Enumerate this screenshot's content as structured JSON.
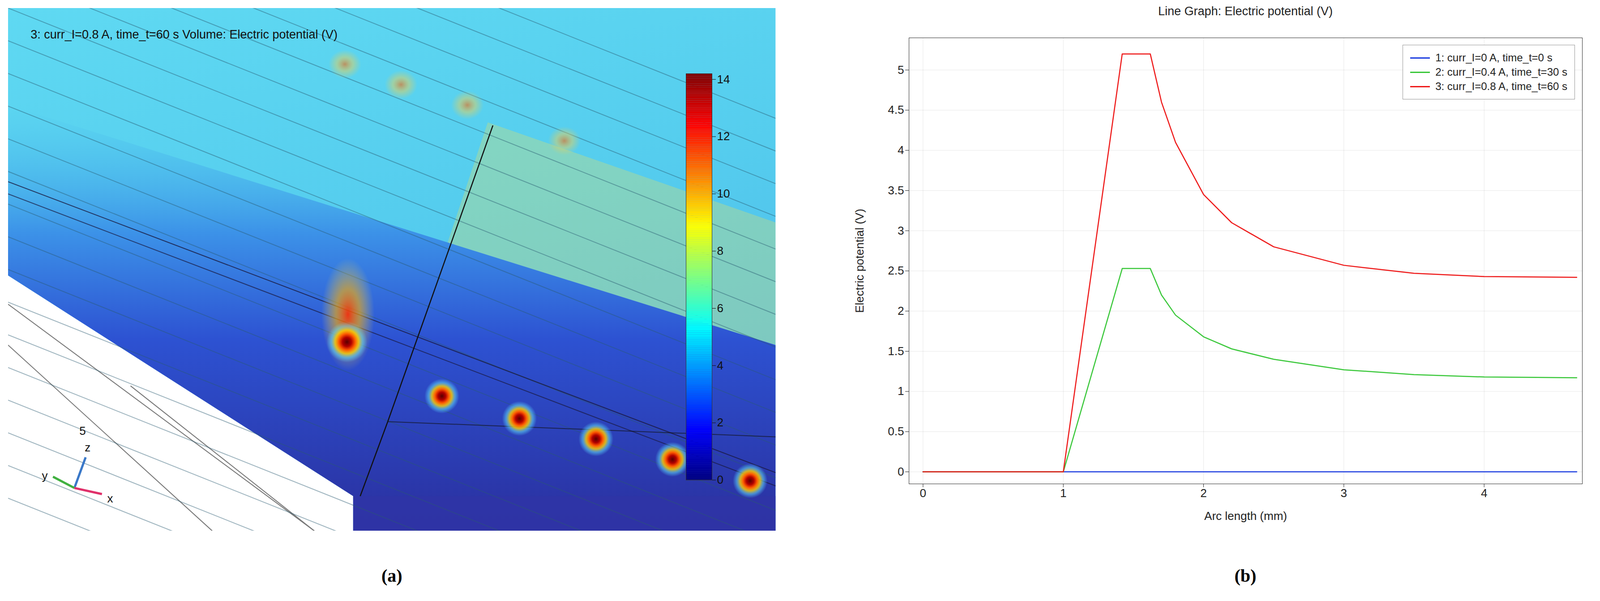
{
  "chart_data": [
    {
      "type": "volume",
      "panel": "(a)",
      "title": "3: curr_I=0.8 A, time_t=60 s Volume: Electric potential (V)",
      "colorbar": {
        "range": [
          0,
          14.2
        ],
        "ticks": [
          0,
          2,
          4,
          6,
          8,
          10,
          12,
          14
        ]
      },
      "triad": {
        "x": "x",
        "y": "y",
        "z": "z",
        "scale": "5"
      }
    },
    {
      "type": "line",
      "panel": "(b)",
      "title": "Line Graph: Electric potential (V)",
      "x_label": "Arc length (mm)",
      "y_label": "Electric potential (V)",
      "x": [
        0,
        1,
        1.42,
        1.62,
        1.7,
        1.8,
        2.0,
        2.2,
        2.5,
        3,
        3.5,
        4,
        4.66
      ],
      "series": [
        {
          "name": "1: curr_I=0 A, time_t=0 s",
          "color": "#1f3fe0",
          "values": [
            0,
            0,
            0,
            0,
            0,
            0,
            0,
            0,
            0,
            0,
            0,
            0,
            0
          ]
        },
        {
          "name": "2: curr_I=0.4 A, time_t=30 s",
          "color": "#3cc83c",
          "values": [
            0,
            0,
            2.53,
            2.53,
            2.2,
            1.95,
            1.68,
            1.53,
            1.4,
            1.27,
            1.21,
            1.18,
            1.17
          ]
        },
        {
          "name": "3: curr_I=0.8 A, time_t=60 s",
          "color": "#ee1c1c",
          "values": [
            0,
            0,
            5.2,
            5.2,
            4.6,
            4.1,
            3.45,
            3.1,
            2.8,
            2.57,
            2.47,
            2.43,
            2.42
          ]
        }
      ],
      "xlim": [
        -0.1,
        4.7
      ],
      "xticks": [
        0,
        1,
        2,
        3,
        4
      ],
      "ylim": [
        -0.15,
        5.4
      ],
      "yticks": [
        0,
        0.5,
        1,
        1.5,
        2,
        2.5,
        3,
        3.5,
        4,
        4.5,
        5
      ],
      "grid": true,
      "legend": "upper right"
    }
  ]
}
